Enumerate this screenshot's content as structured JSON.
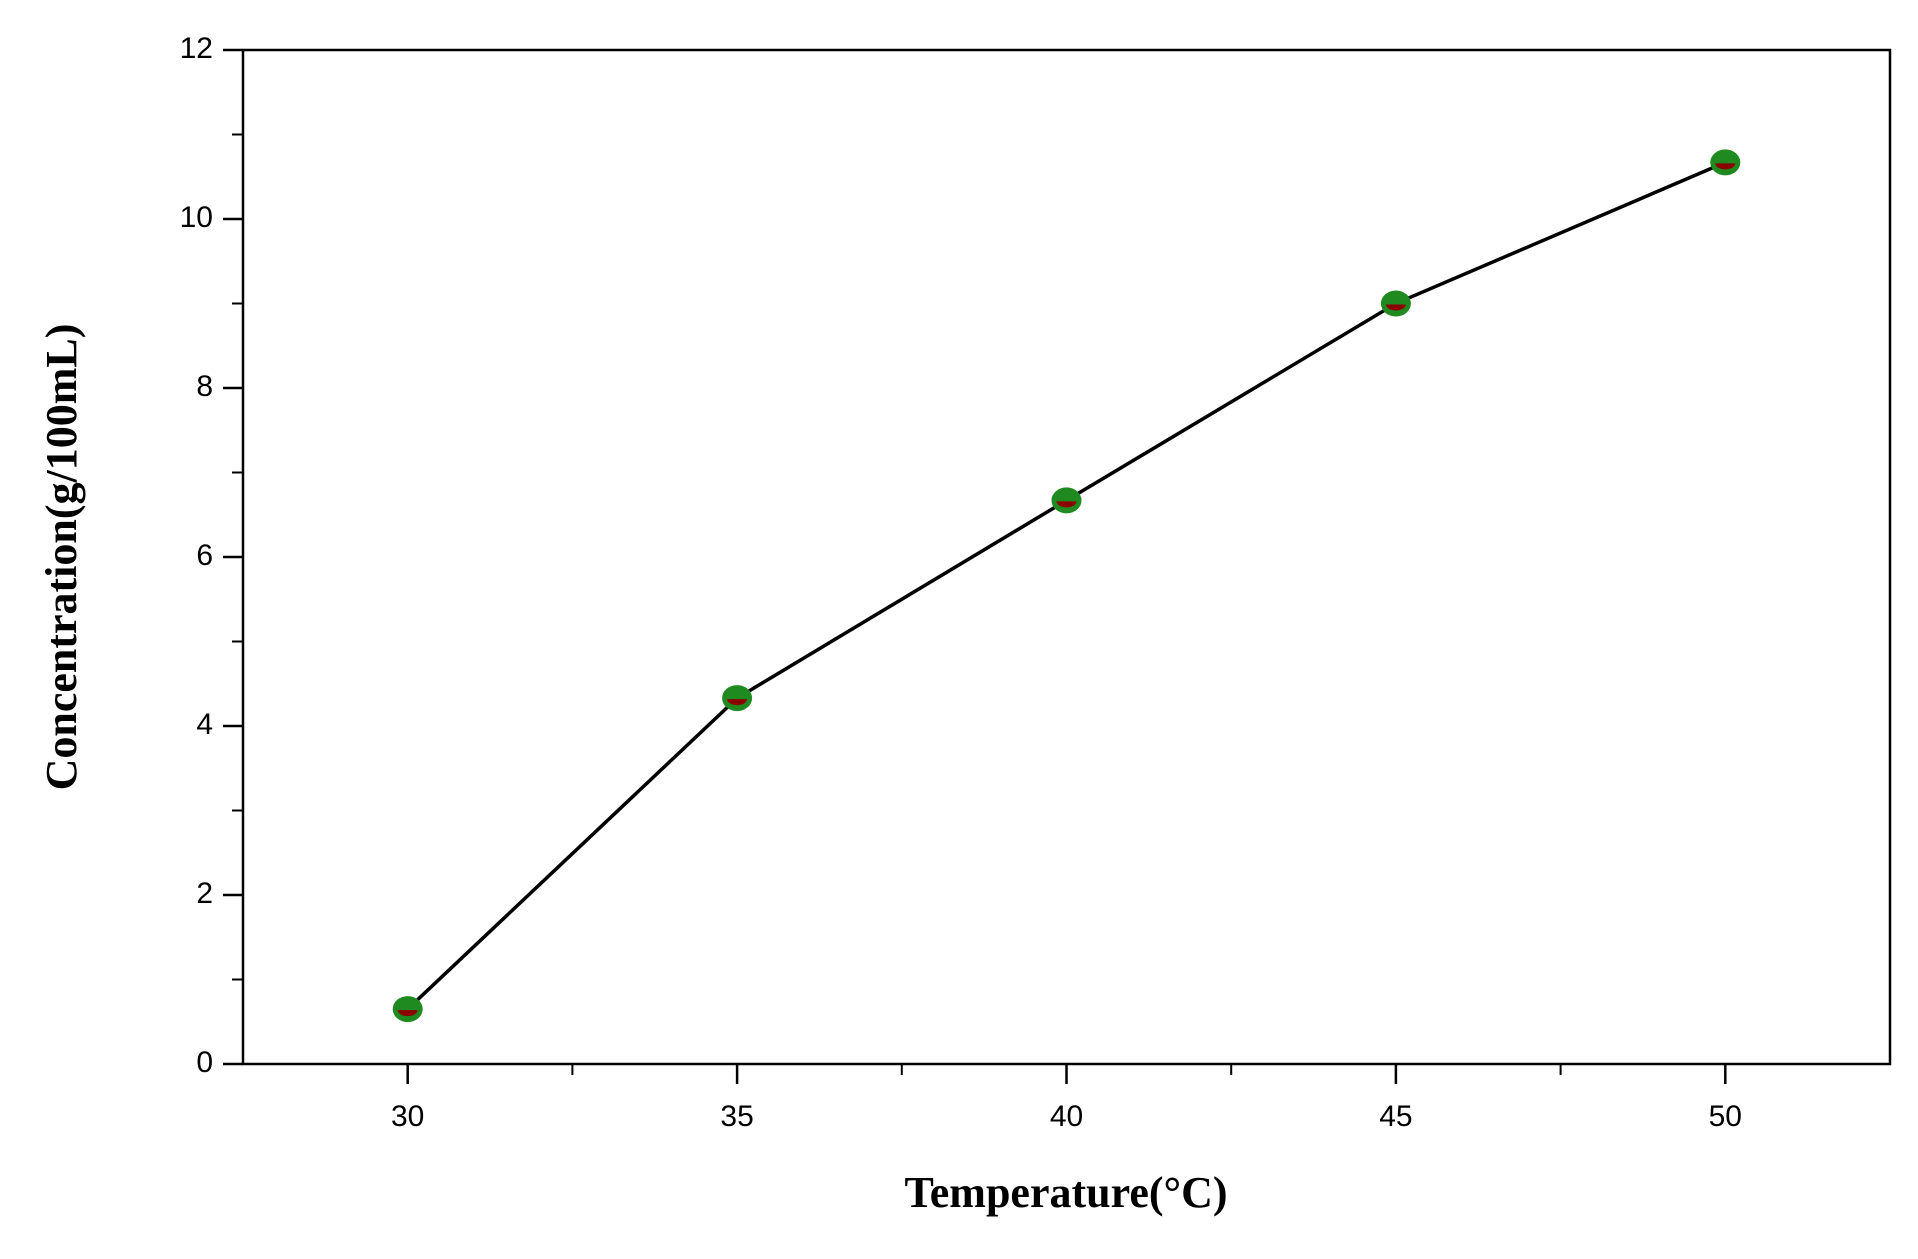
{
  "chart_data": {
    "type": "line",
    "xlabel": "Temperature(°C)",
    "ylabel": "Concentration(g/100mL)",
    "x": [
      30,
      35,
      40,
      45,
      50
    ],
    "series": [
      {
        "values": [
          0.65,
          4.33,
          6.67,
          9.0,
          10.67
        ],
        "color": "#000000",
        "marker_color": "#1f8a1f",
        "marker_shade": "#8b0000"
      }
    ],
    "xlim": [
      27.5,
      52.5
    ],
    "xticks": [
      30,
      35,
      40,
      45,
      50
    ],
    "ylim": [
      0,
      12
    ],
    "yticks": [
      0,
      2,
      4,
      6,
      8,
      10,
      12
    ],
    "grid": false
  }
}
